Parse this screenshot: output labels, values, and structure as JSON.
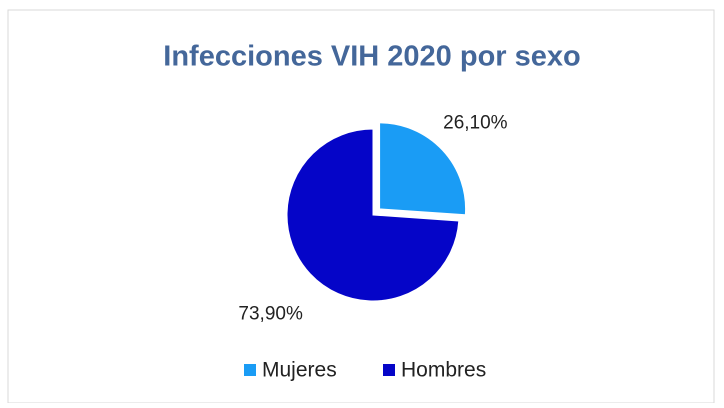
{
  "chart_data": {
    "type": "pie",
    "title": "Infecciones VIH 2020 por sexo",
    "categories": [
      "Mujeres",
      "Hombres"
    ],
    "values": [
      26.1,
      73.9
    ],
    "value_labels": [
      "26,10%",
      "73,90%"
    ],
    "colors": [
      "#1a9cf5",
      "#0505c8"
    ],
    "exploded": [
      true,
      false
    ],
    "legend": "bottom"
  }
}
